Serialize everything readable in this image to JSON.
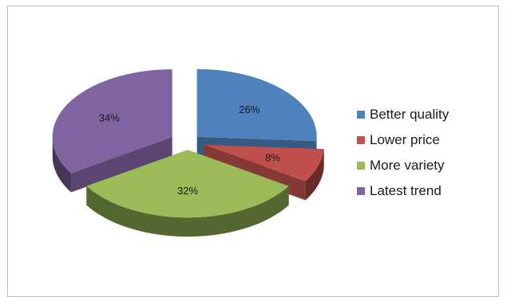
{
  "chart_data": {
    "type": "pie",
    "style": "3d-exploded",
    "legend_position": "right",
    "series": [
      {
        "name": "Better quality",
        "value": 26,
        "label": "26%",
        "color": "#4F81BD"
      },
      {
        "name": "Lower price",
        "value": 8,
        "label": "8%",
        "color": "#C0504D"
      },
      {
        "name": "More variety",
        "value": 32,
        "label": "32%",
        "color": "#9BBB59"
      },
      {
        "name": "Latest trend",
        "value": 34,
        "label": "34%",
        "color": "#8064A2"
      }
    ]
  }
}
